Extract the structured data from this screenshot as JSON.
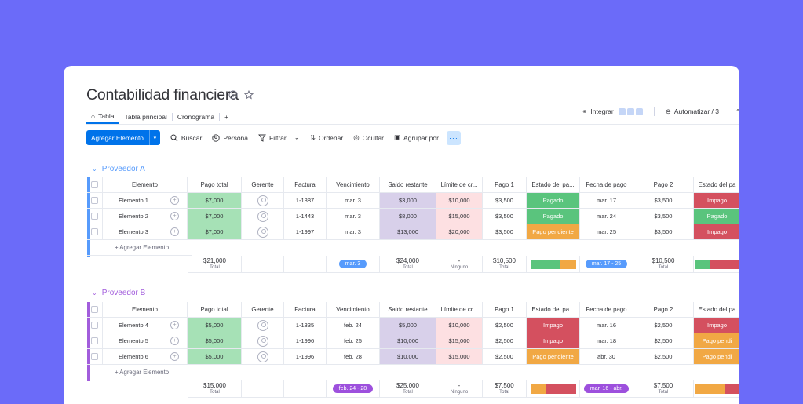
{
  "title": "Contabilidad financiera",
  "tabs": [
    {
      "label": "Tabla"
    },
    {
      "label": "Tabla principal"
    },
    {
      "label": "Cronograma"
    },
    {
      "label": "+"
    }
  ],
  "right_tools": {
    "integrate": "Integrar",
    "automate": "Automatizar / 3"
  },
  "toolbar": {
    "add_item": "Agregar Elemento",
    "search": "Buscar",
    "person": "Persona",
    "filter": "Filtrar",
    "sort": "Ordenar",
    "hide": "Ocultar",
    "group_by": "Agrupar por",
    "more": "···"
  },
  "columns": [
    "Elemento",
    "Pago total",
    "Gerente",
    "Factura",
    "Vencimiento",
    "Saldo restante",
    "Límite de cr...",
    "Pago 1",
    "Estado del pa...",
    "Fecha de pago",
    "Pago 2",
    "Estado del pa"
  ],
  "add_item_row": "+ Agregar Elemento",
  "colors": {
    "background": "#6b6bf9",
    "group_a": "#579bfc",
    "group_b": "#a25ddc",
    "paid": "#5ac47d",
    "unpaid": "#d4505f",
    "pending": "#f1a844"
  },
  "groups": [
    {
      "name": "Proveedor A",
      "rows": [
        {
          "name": "Elemento 1",
          "total": "$7,000",
          "invoice": "1-1887",
          "due": "mar. 3",
          "balance": "$3,000",
          "limit": "$10,000",
          "pay1": "$3,500",
          "status1": "Pagado",
          "date": "mar. 17",
          "pay2": "$3,500",
          "status2": "Impago"
        },
        {
          "name": "Elemento 2",
          "total": "$7,000",
          "invoice": "1-1443",
          "due": "mar. 3",
          "balance": "$8,000",
          "limit": "$15,000",
          "pay1": "$3,500",
          "status1": "Pagado",
          "date": "mar. 24",
          "pay2": "$3,500",
          "status2": "Pagado"
        },
        {
          "name": "Elemento 3",
          "total": "$7,000",
          "invoice": "1-1997",
          "due": "mar. 3",
          "balance": "$13,000",
          "limit": "$20,000",
          "pay1": "$3,500",
          "status1": "Pago pendiente",
          "date": "mar. 25",
          "pay2": "$3,500",
          "status2": "Impago"
        }
      ],
      "summary": {
        "total": "$21,000",
        "total_label": "Total",
        "due": "mar. 3",
        "balance": "$24,000",
        "balance_label": "Total",
        "limit": "-",
        "limit_label": "Ninguno",
        "pay1": "$10,500",
        "pay1_label": "Total",
        "date": "mar. 17 - 25",
        "pay2": "$10,500",
        "pay2_label": "Total"
      }
    },
    {
      "name": "Proveedor B",
      "rows": [
        {
          "name": "Elemento 4",
          "total": "$5,000",
          "invoice": "1-1335",
          "due": "feb. 24",
          "balance": "$5,000",
          "limit": "$10,000",
          "pay1": "$2,500",
          "status1": "Impago",
          "date": "mar. 16",
          "pay2": "$2,500",
          "status2": "Impago"
        },
        {
          "name": "Elemento 5",
          "total": "$5,000",
          "invoice": "1-1996",
          "due": "feb. 25",
          "balance": "$10,000",
          "limit": "$15,000",
          "pay1": "$2,500",
          "status1": "Impago",
          "date": "mar. 18",
          "pay2": "$2,500",
          "status2": "Pago pendi"
        },
        {
          "name": "Elemento 6",
          "total": "$5,000",
          "invoice": "1-1996",
          "due": "feb. 28",
          "balance": "$10,000",
          "limit": "$15,000",
          "pay1": "$2,500",
          "status1": "Pago pendiente",
          "date": "abr. 30",
          "pay2": "$2,500",
          "status2": "Pago pendi"
        }
      ],
      "summary": {
        "total": "$15,000",
        "total_label": "Total",
        "due": "feb. 24 - 28",
        "balance": "$25,000",
        "balance_label": "Total",
        "limit": "-",
        "limit_label": "Ninguno",
        "pay1": "$7,500",
        "pay1_label": "Total",
        "date": "mar. 16 - abr.",
        "pay2": "$7,500",
        "pay2_label": "Total"
      }
    }
  ]
}
